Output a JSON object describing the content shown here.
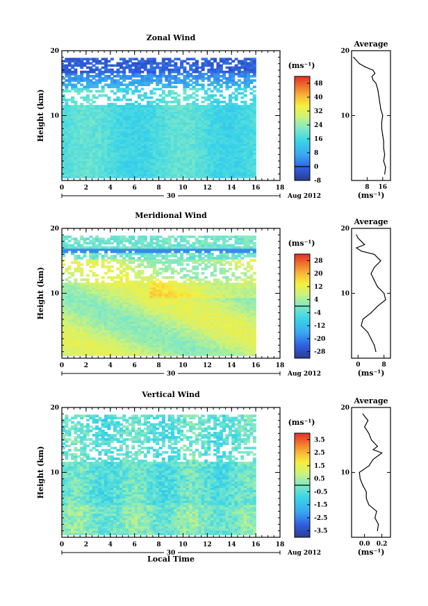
{
  "chart_data": [
    {
      "type": "heatmap",
      "title": "Zonal Wind",
      "ylabel": "Height (km)",
      "xlabel": "",
      "xlim": [
        0,
        18
      ],
      "ylim": [
        0,
        20
      ],
      "xticks": [
        "0",
        "2",
        "4",
        "6",
        "8",
        "10",
        "12",
        "14",
        "16",
        "18"
      ],
      "yticks": [
        "20",
        "10"
      ],
      "date_day": "30",
      "date_label": "Aug 2012",
      "colorbar": {
        "units": "(ms⁻¹)",
        "ticks": [
          "48",
          "40",
          "32",
          "24",
          "16",
          "8",
          "0",
          "-8"
        ],
        "min": -8,
        "max": 52
      },
      "profile": {
        "title": "Average",
        "xlabel": "(ms⁻¹)",
        "xticks": [
          "8",
          "16"
        ],
        "xlim": [
          0,
          20
        ],
        "heights": [
          1,
          2,
          3,
          4,
          5,
          6,
          7,
          8,
          9,
          10,
          11,
          12,
          13,
          14,
          15,
          15.5,
          16,
          16.5,
          17,
          17.5,
          18,
          18.5,
          19
        ],
        "values": [
          17,
          17.5,
          16.5,
          17,
          16.5,
          16.5,
          16,
          15.5,
          15.5,
          16,
          15,
          14.5,
          14,
          13.5,
          12.5,
          11,
          10.5,
          12,
          11,
          7,
          4,
          2.5,
          1
        ]
      }
    },
    {
      "type": "heatmap",
      "title": "Meridional Wind",
      "ylabel": "Height (km)",
      "xlabel": "",
      "xlim": [
        0,
        18
      ],
      "ylim": [
        0,
        20
      ],
      "xticks": [
        "0",
        "2",
        "4",
        "6",
        "8",
        "10",
        "12",
        "14",
        "16",
        "18"
      ],
      "yticks": [
        "20",
        "10"
      ],
      "date_day": "30",
      "date_label": "Aug 2012",
      "colorbar": {
        "units": "(ms⁻¹)",
        "ticks": [
          "28",
          "20",
          "12",
          "4",
          "-4",
          "-12",
          "-20",
          "-28"
        ],
        "min": -32,
        "max": 32
      },
      "profile": {
        "title": "Average",
        "xlabel": "(ms⁻¹)",
        "xticks": [
          "0",
          "8"
        ],
        "xlim": [
          -2,
          10
        ],
        "heights": [
          1,
          2,
          3,
          4,
          5,
          6,
          7,
          8,
          9,
          10,
          11,
          12,
          13,
          14,
          15,
          16,
          16.5,
          17,
          17.5,
          18,
          18.5,
          19
        ],
        "values": [
          5.5,
          5,
          4,
          3,
          1,
          1.5,
          4,
          6,
          8.5,
          8,
          6,
          5,
          4,
          5,
          7,
          5,
          1,
          -0.5,
          2,
          1,
          0,
          -0.5
        ]
      }
    },
    {
      "type": "heatmap",
      "title": "Vertical Wind",
      "ylabel": "Height (km)",
      "xlabel": "Local Time",
      "xlim": [
        0,
        18
      ],
      "ylim": [
        0,
        20
      ],
      "xticks": [
        "0",
        "2",
        "4",
        "6",
        "8",
        "10",
        "12",
        "14",
        "16",
        "18"
      ],
      "yticks": [
        "20",
        "10"
      ],
      "date_day": "30",
      "date_label": "Aug 2012",
      "colorbar": {
        "units": "(ms⁻¹)",
        "ticks": [
          "3.5",
          "2.5",
          "1.5",
          "0.5",
          "-0.5",
          "-1.5",
          "-2.5",
          "-3.5"
        ],
        "min": -4,
        "max": 4
      },
      "profile": {
        "title": "Average",
        "xlabel": "(ms⁻¹)",
        "xticks": [
          "0.0",
          "0.2"
        ],
        "xlim": [
          -0.15,
          0.3
        ],
        "heights": [
          1,
          2,
          3,
          4,
          5,
          6,
          7,
          8,
          9,
          10,
          11,
          12,
          13,
          13.5,
          14,
          15,
          16,
          17,
          18,
          19
        ],
        "values": [
          0.15,
          0.16,
          0.12,
          0.14,
          0.05,
          0.02,
          0.02,
          -0.02,
          -0.05,
          -0.06,
          0.05,
          0.1,
          0.2,
          0.1,
          0.15,
          0.08,
          0.05,
          0.0,
          0.04,
          -0.02
        ]
      }
    }
  ]
}
